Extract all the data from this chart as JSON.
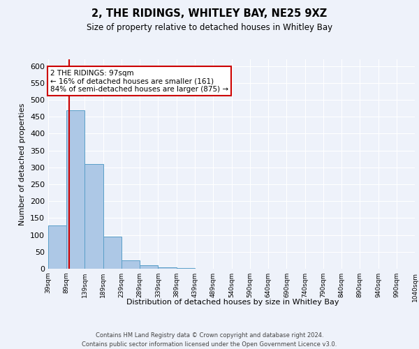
{
  "title1": "2, THE RIDINGS, WHITLEY BAY, NE25 9XZ",
  "title2": "Size of property relative to detached houses in Whitley Bay",
  "xlabel": "Distribution of detached houses by size in Whitley Bay",
  "ylabel": "Number of detached properties",
  "footer1": "Contains HM Land Registry data © Crown copyright and database right 2024.",
  "footer2": "Contains public sector information licensed under the Open Government Licence v3.0.",
  "annotation_line1": "2 THE RIDINGS: 97sqm",
  "annotation_line2": "← 16% of detached houses are smaller (161)",
  "annotation_line3": "84% of semi-detached houses are larger (875) →",
  "property_size": 97,
  "bin_edges": [
    39,
    89,
    139,
    189,
    239,
    289,
    339,
    389,
    439,
    489,
    540,
    590,
    640,
    690,
    740,
    790,
    840,
    890,
    940,
    990,
    1040
  ],
  "bar_heights": [
    128,
    470,
    310,
    95,
    25,
    10,
    5,
    2,
    1,
    1,
    1,
    0,
    0,
    0,
    0,
    0,
    0,
    0,
    0,
    1
  ],
  "bar_color": "#adc8e6",
  "bar_edge_color": "#5a9fc8",
  "red_line_color": "#cc0000",
  "annotation_box_color": "#ffffff",
  "annotation_box_edge": "#cc0000",
  "ylim": [
    0,
    620
  ],
  "yticks": [
    0,
    50,
    100,
    150,
    200,
    250,
    300,
    350,
    400,
    450,
    500,
    550,
    600
  ],
  "background_color": "#eef2fa"
}
